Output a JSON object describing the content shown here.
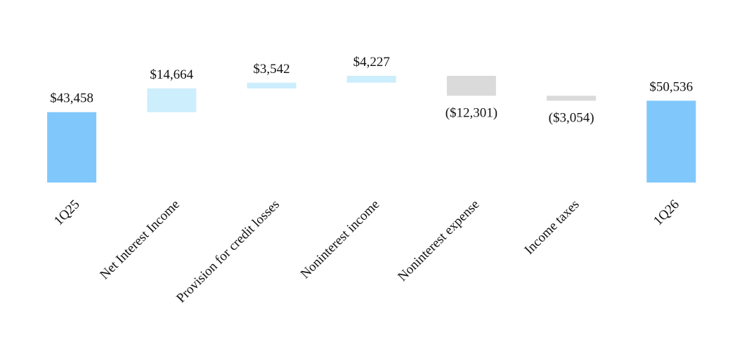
{
  "chart_data": {
    "type": "waterfall",
    "categories": [
      "1Q25",
      "Net Interest Income",
      "Provision for credit losses",
      "Noninterest income",
      "Noninterest expense",
      "Income taxes",
      "1Q26"
    ],
    "values": [
      43458,
      14664,
      3542,
      4227,
      -12301,
      -3054,
      50536
    ],
    "value_labels": [
      "$43,458",
      "$14,664",
      "$3,542",
      "$4,227",
      "($12,301)",
      "($3,054)",
      "$50,536"
    ],
    "measure": [
      "total",
      "relative",
      "relative",
      "relative",
      "relative",
      "relative",
      "total"
    ],
    "total_color": "#80c8fc",
    "increase_color": "#cdeefc",
    "decrease_color": "#dadada"
  }
}
